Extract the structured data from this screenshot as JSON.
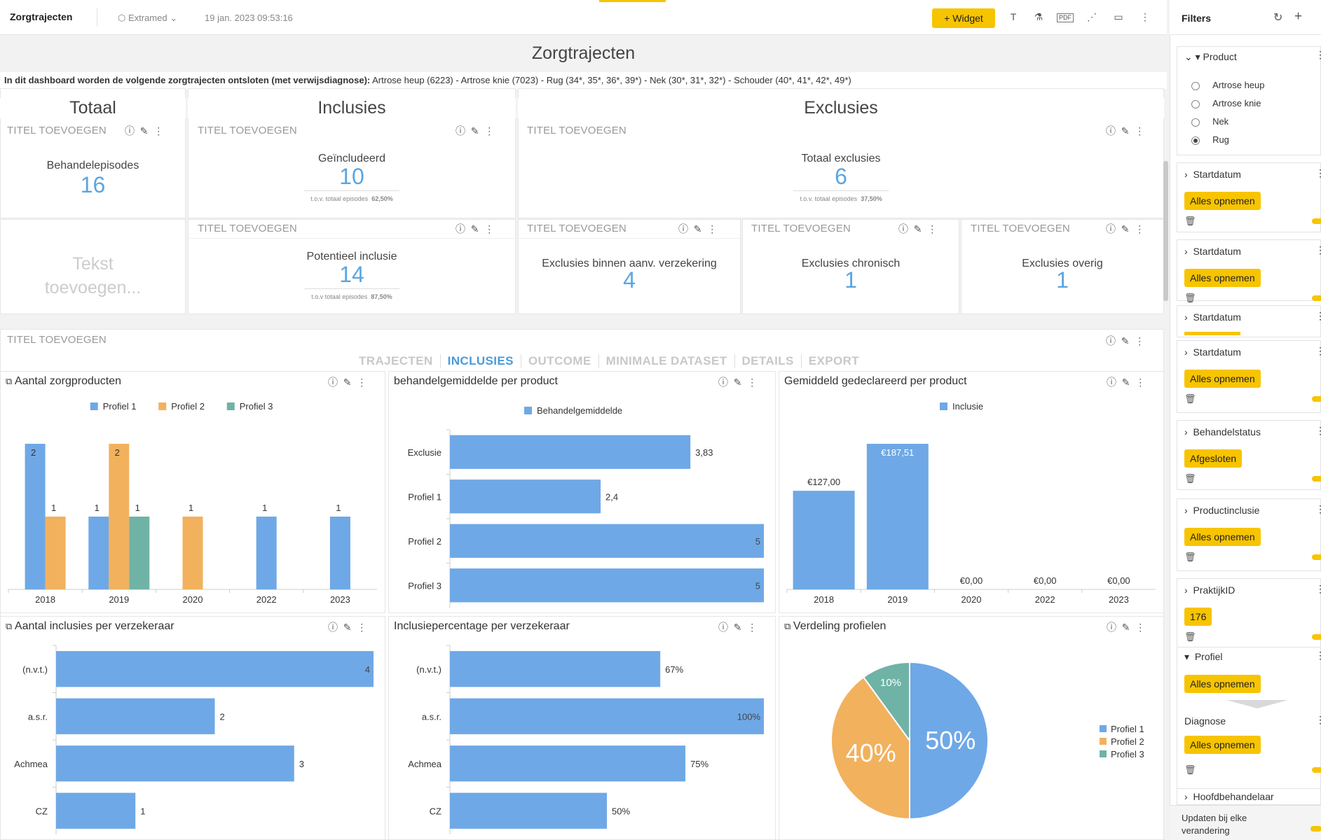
{
  "topbar": {
    "title": "Zorgtrajecten",
    "org": "Extramed",
    "date": "19 jan. 2023 09:53:16",
    "widget_button": "Widget",
    "pdf_label": "PDF"
  },
  "page": {
    "title": "Zorgtrajecten",
    "intro_bold": "In dit dashboard worden de volgende zorgtrajecten ontsloten (met verwijsdiagnose):",
    "intro_rest": "Artrose heup (6223) - Artrose knie (7023) - Rug (34*, 35*, 36*, 39*) - Nek (30*, 31*, 32*) - Schouder (40*, 41*, 42*, 49*)"
  },
  "sections": {
    "totaal": "Totaal",
    "inclusies": "Inclusies",
    "exclusies": "Exclusies"
  },
  "placeholder_title": "TITEL TOEVOEGEN",
  "text_placeholder": "Tekst toevoegen...",
  "kpis": {
    "behandelepisodes": {
      "label": "Behandelepisodes",
      "value": "16"
    },
    "geincludeerd": {
      "label": "Geïncludeerd",
      "value": "10",
      "sub": "t.o.v. totaal episodes",
      "pct": "62,50%"
    },
    "totaal_exclusies": {
      "label": "Totaal exclusies",
      "value": "6",
      "sub": "t.o.v. totaal episodes",
      "pct": "37,50%"
    },
    "potentieel": {
      "label": "Potentieel inclusie",
      "value": "14",
      "sub": "t.o.v totaal episodes",
      "pct": "87,50%"
    },
    "excl_verzekering": {
      "label": "Exclusies binnen aanv. verzekering",
      "value": "4"
    },
    "excl_chronisch": {
      "label": "Exclusies chronisch",
      "value": "1"
    },
    "excl_overig": {
      "label": "Exclusies overig",
      "value": "1"
    }
  },
  "tabs": [
    "TRAJECTEN",
    "INCLUSIES",
    "OUTCOME",
    "MINIMALE DATASET",
    "DETAILS",
    "EXPORT"
  ],
  "active_tab": "INCLUSIES",
  "colors": {
    "blue": "#6fa8e6",
    "orange": "#f2b15d",
    "teal": "#6fb3a6",
    "accent": "#f7c400"
  },
  "chart_data": [
    {
      "type": "bar",
      "title": "Aantal zorgproducten",
      "categories": [
        "2018",
        "2019",
        "2020",
        "2022",
        "2023"
      ],
      "series": [
        {
          "name": "Profiel 1",
          "values": [
            2,
            1,
            null,
            1,
            1
          ]
        },
        {
          "name": "Profiel 2",
          "values": [
            1,
            2,
            1,
            null,
            null
          ]
        },
        {
          "name": "Profiel 3",
          "values": [
            null,
            1,
            null,
            null,
            null
          ]
        }
      ],
      "ylim": [
        0,
        2
      ]
    },
    {
      "type": "bar",
      "orientation": "horizontal",
      "title": "behandelgemiddelde per product",
      "categories": [
        "Exclusie",
        "Profiel 1",
        "Profiel 2",
        "Profiel 3"
      ],
      "series": [
        {
          "name": "Behandelgemiddelde",
          "values": [
            3.83,
            2.4,
            5,
            5
          ]
        }
      ],
      "labels": [
        "3,83",
        "2,4",
        "5",
        "5"
      ],
      "xlim": [
        0,
        5
      ]
    },
    {
      "type": "bar",
      "title": "Gemiddeld gedeclareerd per product",
      "categories": [
        "2018",
        "2019",
        "2020",
        "2022",
        "2023"
      ],
      "series": [
        {
          "name": "Inclusie",
          "values": [
            127,
            187.51,
            0,
            0,
            0
          ]
        }
      ],
      "labels": [
        "€127,00",
        "€187,51",
        "€0,00",
        "€0,00",
        "€0,00"
      ],
      "ylim": [
        0,
        187.51
      ]
    },
    {
      "type": "bar",
      "orientation": "horizontal",
      "title": "Aantal inclusies per verzekeraar",
      "categories": [
        "(n.v.t.)",
        "a.s.r.",
        "Achmea",
        "CZ"
      ],
      "series": [
        {
          "name": "",
          "values": [
            4,
            2,
            3,
            1
          ]
        }
      ],
      "labels": [
        "4",
        "2",
        "3",
        "1"
      ],
      "xlim": [
        0,
        4
      ]
    },
    {
      "type": "bar",
      "orientation": "horizontal",
      "title": "Inclusiepercentage per verzekeraar",
      "categories": [
        "(n.v.t.)",
        "a.s.r.",
        "Achmea",
        "CZ"
      ],
      "series": [
        {
          "name": "",
          "values": [
            67,
            100,
            75,
            50
          ]
        }
      ],
      "labels": [
        "67%",
        "100%",
        "75%",
        "50%"
      ],
      "xlim": [
        0,
        100
      ]
    },
    {
      "type": "pie",
      "title": "Verdeling profielen",
      "categories": [
        "Profiel 1",
        "Profiel 2",
        "Profiel 3"
      ],
      "values": [
        50,
        40,
        10
      ],
      "labels": [
        "50%",
        "40%",
        "10%"
      ]
    }
  ],
  "filters": {
    "title": "Filters",
    "product": {
      "title": "Product",
      "options": [
        "Artrose heup",
        "Artrose knie",
        "Nek",
        "Rug"
      ],
      "selected": "Rug"
    },
    "cards": [
      {
        "title": "Startdatum",
        "chip": "Alles opnemen"
      },
      {
        "title": "Startdatum",
        "chip": "Alles opnemen"
      },
      {
        "title": "Startdatum",
        "chip": ""
      },
      {
        "title": "Startdatum",
        "chip": "Alles opnemen"
      },
      {
        "title": "Behandelstatus",
        "chip": "Afgesloten"
      },
      {
        "title": "Productinclusie",
        "chip": "Alles opnemen"
      },
      {
        "title": "PraktijkID",
        "chip": "176"
      }
    ],
    "profiel": {
      "title": "Profiel",
      "chip": "Alles opnemen",
      "sub_title": "Diagnose",
      "sub_chip": "Alles opnemen"
    },
    "hoofdbehandelaar": "Hoofdbehandelaar",
    "update_label": "Updaten bij elke verandering"
  }
}
